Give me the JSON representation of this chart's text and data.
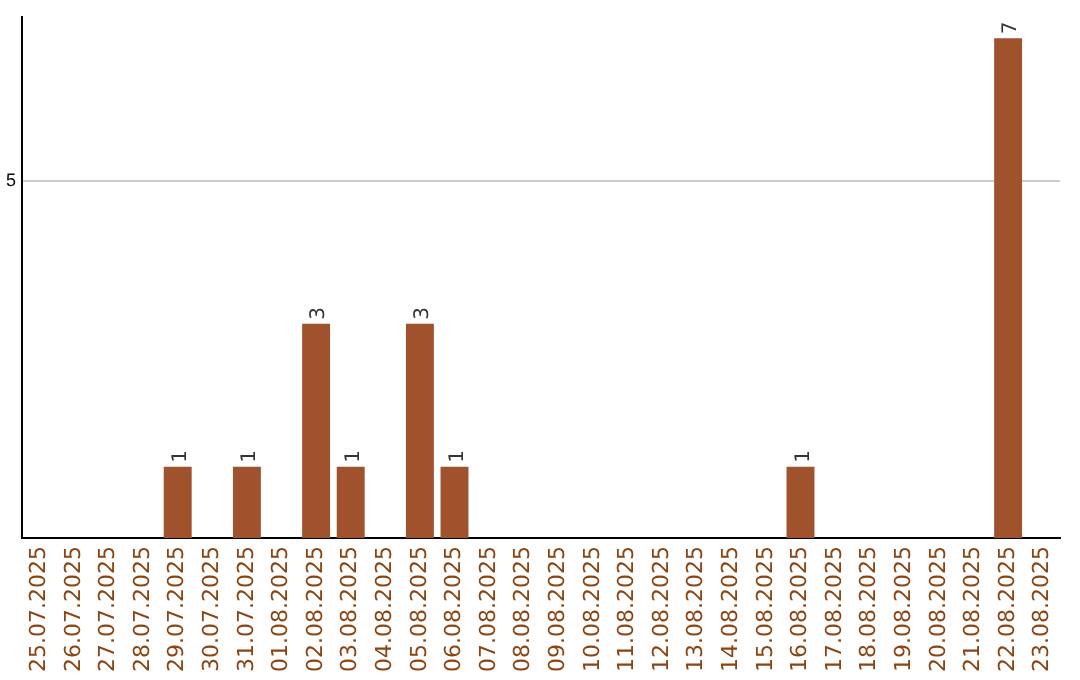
{
  "chart_data": {
    "type": "bar",
    "categories": [
      "25.07.2025",
      "26.07.2025",
      "27.07.2025",
      "28.07.2025",
      "29.07.2025",
      "30.07.2025",
      "31.07.2025",
      "01.08.2025",
      "02.08.2025",
      "03.08.2025",
      "04.08.2025",
      "05.08.2025",
      "06.08.2025",
      "07.08.2025",
      "08.08.2025",
      "09.08.2025",
      "10.08.2025",
      "11.08.2025",
      "12.08.2025",
      "13.08.2025",
      "14.08.2025",
      "15.08.2025",
      "16.08.2025",
      "17.08.2025",
      "18.08.2025",
      "19.08.2025",
      "20.08.2025",
      "21.08.2025",
      "22.08.2025",
      "23.08.2025"
    ],
    "values": [
      0,
      0,
      0,
      0,
      1,
      0,
      1,
      0,
      3,
      1,
      0,
      3,
      1,
      0,
      0,
      0,
      0,
      0,
      0,
      0,
      0,
      0,
      1,
      0,
      0,
      0,
      0,
      0,
      7,
      0
    ],
    "value_labels": [
      null,
      null,
      null,
      null,
      "1",
      null,
      "1",
      null,
      "3",
      "1",
      null,
      "3",
      "1",
      null,
      null,
      null,
      null,
      null,
      null,
      null,
      null,
      null,
      "1",
      null,
      null,
      null,
      null,
      null,
      "7",
      null
    ],
    "color": "#a0522d",
    "ylim": [
      0,
      7.3
    ],
    "yticks": [
      5
    ],
    "grid": "y"
  }
}
